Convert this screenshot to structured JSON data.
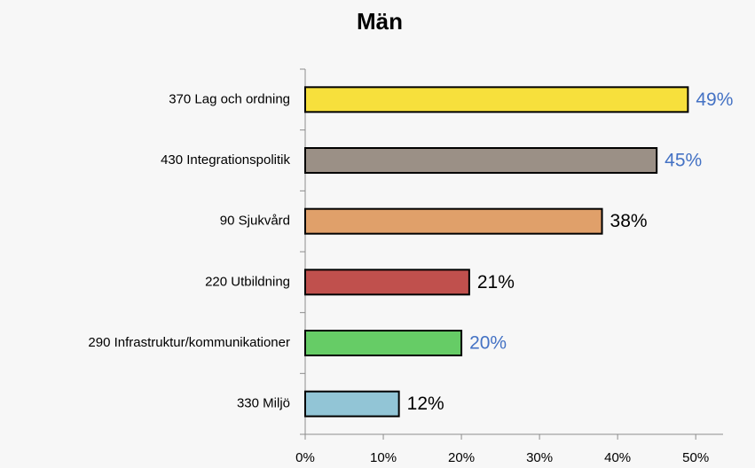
{
  "chart_data": {
    "type": "barh",
    "title": "Män",
    "categories": [
      "370 Lag och ordning",
      "430 Integrationspolitik",
      "90 Sjukvård",
      "220 Utbildning",
      "290 Infrastruktur/kommunikationer",
      "330 Miljö"
    ],
    "values": [
      49,
      45,
      38,
      21,
      20,
      12
    ],
    "value_labels": [
      "49%",
      "45%",
      "38%",
      "21%",
      "20%",
      "12%"
    ],
    "colors": [
      "#f7e03c",
      "#9b9086",
      "#e0a06a",
      "#c0504d",
      "#66cc66",
      "#92c5d6"
    ],
    "value_label_colors": [
      "#4472c4",
      "#4472c4",
      "#000000",
      "#000000",
      "#4472c4",
      "#000000"
    ],
    "xlim": [
      0,
      53.5
    ],
    "xticks": [
      {
        "value": 0,
        "label": "0%"
      },
      {
        "value": 10,
        "label": "10%"
      },
      {
        "value": 20,
        "label": "20%"
      },
      {
        "value": 30,
        "label": "30%"
      },
      {
        "value": 40,
        "label": "40%"
      },
      {
        "value": 50,
        "label": "50%"
      }
    ],
    "grid": false
  }
}
